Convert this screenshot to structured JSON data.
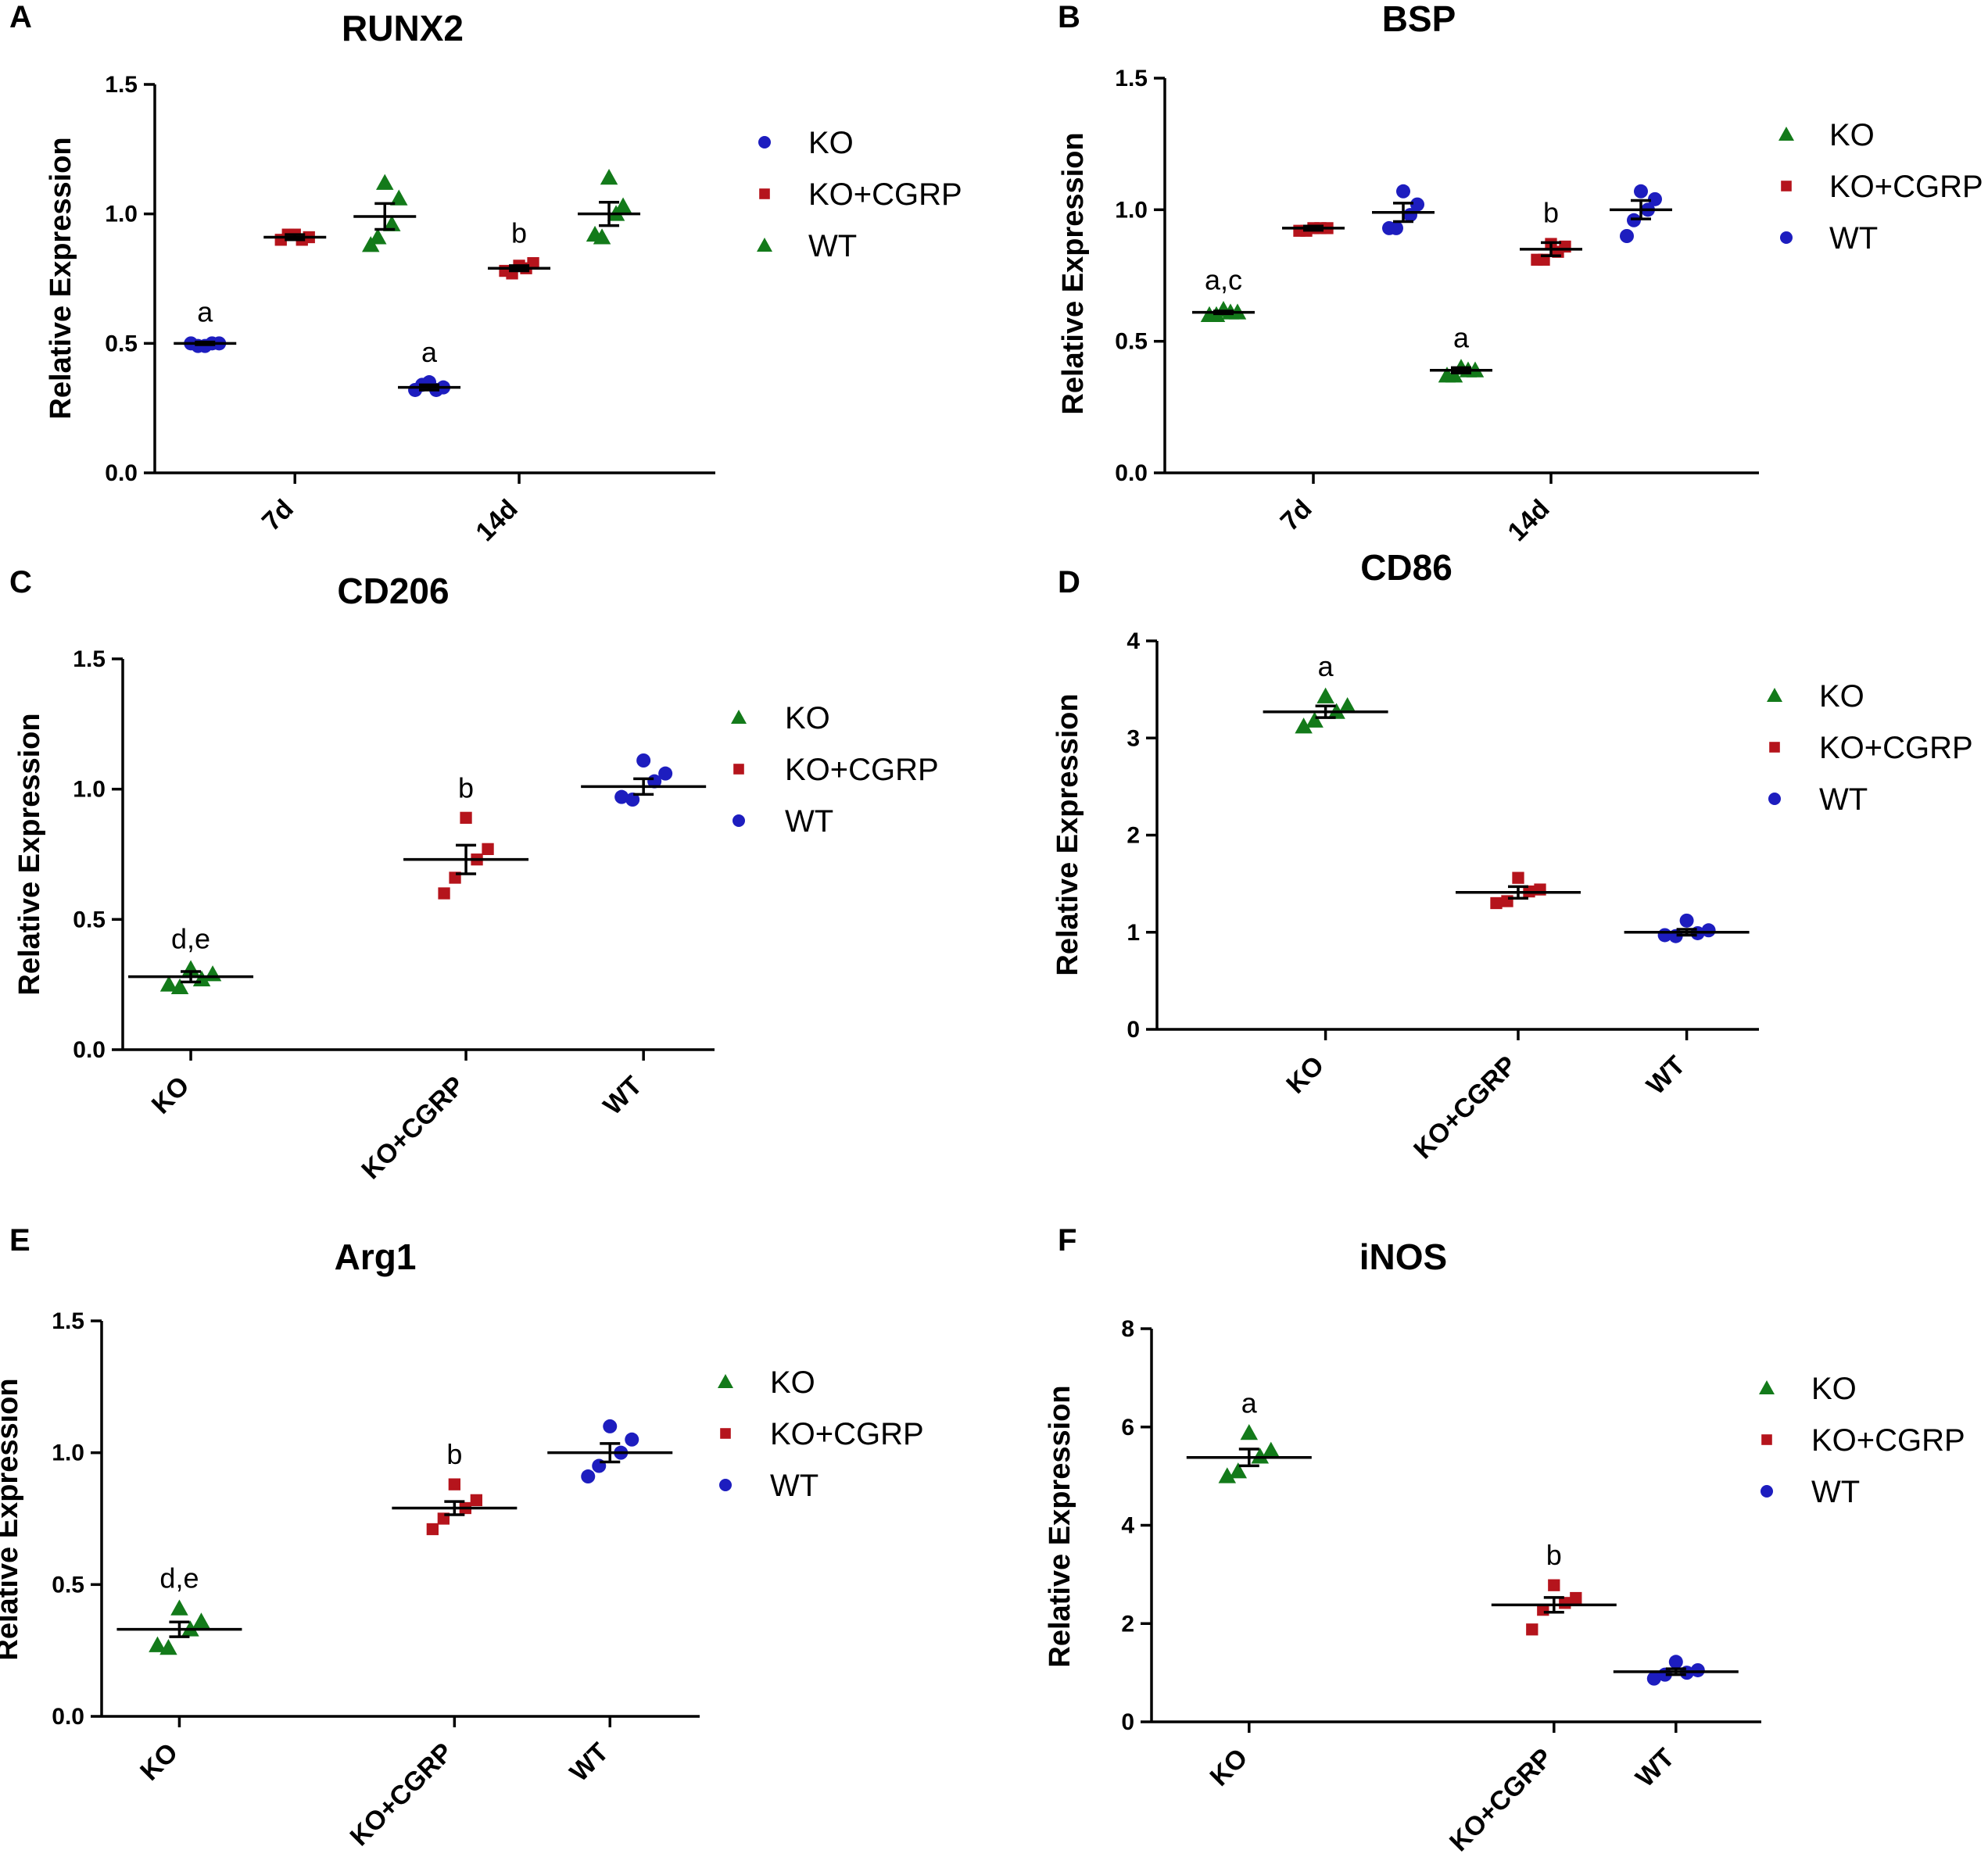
{
  "colors": {
    "KO_blue": "#1d1dbf",
    "red": "#b5141c",
    "green": "#137a1a",
    "axis": "#000000"
  },
  "chart_data": [
    {
      "panel": "A",
      "type": "scatter",
      "title": "RUNX2",
      "ylabel": "Relative Expression",
      "ylim": [
        0,
        1.5
      ],
      "yticks": [
        "0.0",
        "0.5",
        "1.0",
        "1.5"
      ],
      "categories": [
        "7d",
        "14d"
      ],
      "legend": [
        {
          "name": "KO",
          "marker": "circle",
          "color": "#1d1dbf"
        },
        {
          "name": "KO+CGRP",
          "marker": "square",
          "color": "#b5141c"
        },
        {
          "name": "WT",
          "marker": "triangle",
          "color": "#137a1a"
        }
      ],
      "groups": [
        {
          "category": "7d",
          "series": "KO",
          "marker": "circle",
          "color": "#1d1dbf",
          "mean": 0.5,
          "sem": 0.005,
          "points": [
            0.49,
            0.5,
            0.5,
            0.49,
            0.5
          ],
          "label": "a"
        },
        {
          "category": "7d",
          "series": "KO+CGRP",
          "marker": "square",
          "color": "#b5141c",
          "mean": 0.91,
          "sem": 0.01,
          "points": [
            0.92,
            0.9,
            0.91,
            0.92,
            0.9
          ],
          "label": ""
        },
        {
          "category": "7d",
          "series": "WT",
          "marker": "triangle",
          "color": "#137a1a",
          "mean": 0.99,
          "sem": 0.05,
          "points": [
            1.12,
            0.88,
            1.06,
            0.91,
            0.96
          ],
          "label": ""
        },
        {
          "category": "14d",
          "series": "KO",
          "marker": "circle",
          "color": "#1d1dbf",
          "mean": 0.33,
          "sem": 0.01,
          "points": [
            0.35,
            0.32,
            0.33,
            0.34,
            0.32
          ],
          "label": "a"
        },
        {
          "category": "14d",
          "series": "KO+CGRP",
          "marker": "square",
          "color": "#b5141c",
          "mean": 0.79,
          "sem": 0.01,
          "points": [
            0.8,
            0.78,
            0.81,
            0.77,
            0.79
          ],
          "label": "b"
        },
        {
          "category": "14d",
          "series": "WT",
          "marker": "triangle",
          "color": "#137a1a",
          "mean": 1.0,
          "sem": 0.045,
          "points": [
            1.14,
            0.92,
            1.03,
            0.91,
            1.0
          ],
          "label": ""
        }
      ]
    },
    {
      "panel": "B",
      "type": "scatter",
      "title": "BSP",
      "ylabel": "Relative Expression",
      "ylim": [
        0,
        1.5
      ],
      "yticks": [
        "0.0",
        "0.5",
        "1.0",
        "1.5"
      ],
      "categories": [
        "7d",
        "14d"
      ],
      "legend": [
        {
          "name": "KO",
          "marker": "triangle",
          "color": "#137a1a"
        },
        {
          "name": "KO+CGRP",
          "marker": "square",
          "color": "#b5141c"
        },
        {
          "name": "WT",
          "marker": "circle",
          "color": "#1d1dbf"
        }
      ],
      "groups": [
        {
          "category": "7d",
          "series": "KO",
          "marker": "triangle",
          "color": "#137a1a",
          "mean": 0.61,
          "sem": 0.005,
          "points": [
            0.62,
            0.6,
            0.61,
            0.6,
            0.61
          ],
          "label": "a,c"
        },
        {
          "category": "7d",
          "series": "KO+CGRP",
          "marker": "square",
          "color": "#b5141c",
          "mean": 0.93,
          "sem": 0.008,
          "points": [
            0.93,
            0.92,
            0.93,
            0.92,
            0.93
          ],
          "label": ""
        },
        {
          "category": "7d",
          "series": "WT",
          "marker": "circle",
          "color": "#1d1dbf",
          "mean": 0.99,
          "sem": 0.035,
          "points": [
            1.07,
            0.93,
            1.02,
            0.93,
            0.98
          ],
          "label": ""
        },
        {
          "category": "14d",
          "series": "KO",
          "marker": "triangle",
          "color": "#137a1a",
          "mean": 0.39,
          "sem": 0.01,
          "points": [
            0.4,
            0.37,
            0.39,
            0.37,
            0.39
          ],
          "label": "a"
        },
        {
          "category": "14d",
          "series": "KO+CGRP",
          "marker": "square",
          "color": "#b5141c",
          "mean": 0.85,
          "sem": 0.025,
          "points": [
            0.87,
            0.81,
            0.86,
            0.81,
            0.84
          ],
          "label": "b"
        },
        {
          "category": "14d",
          "series": "WT",
          "marker": "circle",
          "color": "#1d1dbf",
          "mean": 1.0,
          "sem": 0.035,
          "points": [
            1.07,
            0.9,
            1.04,
            0.96,
            1.0
          ],
          "label": ""
        }
      ]
    },
    {
      "panel": "C",
      "type": "scatter",
      "title": "CD206",
      "ylabel": "Relative Expression",
      "ylim": [
        0,
        1.5
      ],
      "yticks": [
        "0.0",
        "0.5",
        "1.0",
        "1.5"
      ],
      "categories": [
        "KO",
        "KO+CGRP",
        "WT"
      ],
      "legend": [
        {
          "name": "KO",
          "marker": "triangle",
          "color": "#137a1a"
        },
        {
          "name": "KO+CGRP",
          "marker": "square",
          "color": "#b5141c"
        },
        {
          "name": "WT",
          "marker": "circle",
          "color": "#1d1dbf"
        }
      ],
      "groups": [
        {
          "category": "KO",
          "series": "KO",
          "marker": "triangle",
          "color": "#137a1a",
          "mean": 0.28,
          "sem": 0.02,
          "points": [
            0.31,
            0.25,
            0.29,
            0.24,
            0.27
          ],
          "label": "d,e"
        },
        {
          "category": "KO+CGRP",
          "series": "KO+CGRP",
          "marker": "square",
          "color": "#b5141c",
          "mean": 0.73,
          "sem": 0.055,
          "points": [
            0.89,
            0.6,
            0.77,
            0.66,
            0.73
          ],
          "label": "b"
        },
        {
          "category": "WT",
          "series": "WT",
          "marker": "circle",
          "color": "#1d1dbf",
          "mean": 1.01,
          "sem": 0.03,
          "points": [
            1.11,
            0.97,
            1.06,
            0.96,
            1.03
          ],
          "label": ""
        }
      ]
    },
    {
      "panel": "D",
      "type": "scatter",
      "title": "CD86",
      "ylabel": "Relative Expression",
      "ylim": [
        0,
        4
      ],
      "yticks": [
        "0",
        "1",
        "2",
        "3",
        "4"
      ],
      "categories": [
        "KO",
        "KO+CGRP",
        "WT"
      ],
      "legend": [
        {
          "name": "KO",
          "marker": "triangle",
          "color": "#137a1a"
        },
        {
          "name": "KO+CGRP",
          "marker": "square",
          "color": "#b5141c"
        },
        {
          "name": "WT",
          "marker": "circle",
          "color": "#1d1dbf"
        }
      ],
      "groups": [
        {
          "category": "KO",
          "series": "KO",
          "marker": "triangle",
          "color": "#137a1a",
          "mean": 3.27,
          "sem": 0.06,
          "points": [
            3.43,
            3.12,
            3.33,
            3.18,
            3.27
          ],
          "label": "a"
        },
        {
          "category": "KO+CGRP",
          "series": "KO+CGRP",
          "marker": "square",
          "color": "#b5141c",
          "mean": 1.41,
          "sem": 0.06,
          "points": [
            1.56,
            1.3,
            1.44,
            1.32,
            1.42
          ],
          "label": ""
        },
        {
          "category": "WT",
          "series": "WT",
          "marker": "circle",
          "color": "#1d1dbf",
          "mean": 1.0,
          "sem": 0.03,
          "points": [
            1.12,
            0.97,
            1.02,
            0.96,
            0.99
          ],
          "label": ""
        }
      ]
    },
    {
      "panel": "E",
      "type": "scatter",
      "title": "Arg1",
      "ylabel": "Relative Expression",
      "ylim": [
        0,
        1.5
      ],
      "yticks": [
        "0.0",
        "0.5",
        "1.0",
        "1.5"
      ],
      "categories": [
        "KO",
        "KO+CGRP",
        "WT"
      ],
      "legend": [
        {
          "name": "KO",
          "marker": "triangle",
          "color": "#137a1a"
        },
        {
          "name": "KO+CGRP",
          "marker": "square",
          "color": "#b5141c"
        },
        {
          "name": "WT",
          "marker": "circle",
          "color": "#1d1dbf"
        }
      ],
      "groups": [
        {
          "category": "KO",
          "series": "KO",
          "marker": "triangle",
          "color": "#137a1a",
          "mean": 0.33,
          "sem": 0.028,
          "points": [
            0.41,
            0.27,
            0.36,
            0.26,
            0.33
          ],
          "label": "d,e"
        },
        {
          "category": "KO+CGRP",
          "series": "KO+CGRP",
          "marker": "square",
          "color": "#b5141c",
          "mean": 0.79,
          "sem": 0.025,
          "points": [
            0.88,
            0.71,
            0.82,
            0.75,
            0.79
          ],
          "label": "b"
        },
        {
          "category": "WT",
          "series": "WT",
          "marker": "circle",
          "color": "#1d1dbf",
          "mean": 1.0,
          "sem": 0.035,
          "points": [
            1.1,
            0.91,
            1.05,
            0.95,
            1.0
          ],
          "label": ""
        }
      ]
    },
    {
      "panel": "F",
      "type": "scatter",
      "title": "iNOS",
      "ylabel": "Relative Expression",
      "ylim": [
        0,
        8
      ],
      "yticks": [
        "0",
        "2",
        "4",
        "6",
        "8"
      ],
      "categories": [
        "KO",
        "KO+CGRP",
        "WT"
      ],
      "legend": [
        {
          "name": "KO",
          "marker": "triangle",
          "color": "#137a1a"
        },
        {
          "name": "KO+CGRP",
          "marker": "square",
          "color": "#b5141c"
        },
        {
          "name": "WT",
          "marker": "circle",
          "color": "#1d1dbf"
        }
      ],
      "groups": [
        {
          "category": "KO",
          "series": "KO",
          "marker": "triangle",
          "color": "#137a1a",
          "mean": 5.38,
          "sem": 0.17,
          "points": [
            5.88,
            5.0,
            5.52,
            5.1,
            5.4
          ],
          "label": "a"
        },
        {
          "category": "KO+CGRP",
          "series": "KO+CGRP",
          "marker": "square",
          "color": "#b5141c",
          "mean": 2.38,
          "sem": 0.15,
          "points": [
            2.78,
            1.88,
            2.52,
            2.28,
            2.42
          ],
          "label": "b"
        },
        {
          "category": "WT",
          "series": "WT",
          "marker": "circle",
          "color": "#1d1dbf",
          "mean": 1.02,
          "sem": 0.06,
          "points": [
            1.22,
            0.88,
            1.05,
            0.96,
            1.0
          ],
          "label": ""
        }
      ]
    }
  ]
}
